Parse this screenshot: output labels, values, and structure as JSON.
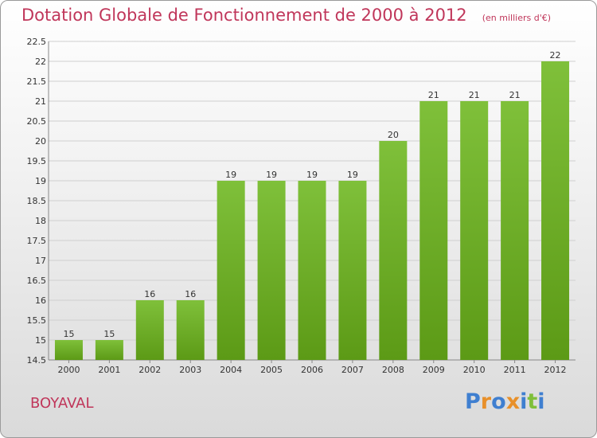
{
  "chart_data": {
    "type": "bar",
    "title": "Dotation Globale de Fonctionnement de 2000 à 2012",
    "subtitle": "(en milliers d'€)",
    "categories": [
      "2000",
      "2001",
      "2002",
      "2003",
      "2004",
      "2005",
      "2006",
      "2007",
      "2008",
      "2009",
      "2010",
      "2011",
      "2012"
    ],
    "values": [
      15,
      15,
      16,
      16,
      19,
      19,
      19,
      19,
      20,
      21,
      21,
      21,
      22
    ],
    "data_labels": [
      "15",
      "15",
      "16",
      "16",
      "19",
      "19",
      "19",
      "19",
      "20",
      "21",
      "21",
      "21",
      "22"
    ],
    "ylim": [
      14.5,
      22.5
    ],
    "yticks": [
      "14.5",
      "15",
      "15.5",
      "16",
      "16.5",
      "17",
      "17.5",
      "18",
      "18.5",
      "19",
      "19.5",
      "20",
      "20.5",
      "21",
      "21.5",
      "22",
      "22.5"
    ],
    "grid": true,
    "bar_color": "#7fc03a",
    "bar_color_dark": "#5c9a16"
  },
  "footer": {
    "commune": "BOYAVAL",
    "logo_letters": [
      {
        "ch": "P",
        "color": "#3f7fd0"
      },
      {
        "ch": "r",
        "color": "#e8902a"
      },
      {
        "ch": "o",
        "color": "#3f7fd0"
      },
      {
        "ch": "x",
        "color": "#e8902a"
      },
      {
        "ch": "i",
        "color": "#3f7fd0"
      },
      {
        "ch": "t",
        "color": "#7fbf3a"
      },
      {
        "ch": "i",
        "color": "#3f7fd0"
      }
    ]
  },
  "colors": {
    "title": "#c0365a",
    "commune": "#c0365a",
    "grid": "#cfcfcf"
  }
}
